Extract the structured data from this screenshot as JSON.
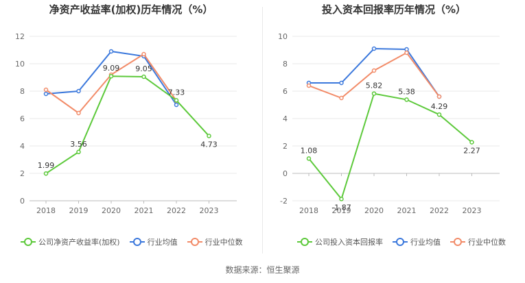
{
  "chart_data": [
    {
      "type": "line",
      "title": "净资产收益率(加权)历年情况（%）",
      "categories": [
        "2018",
        "2019",
        "2020",
        "2021",
        "2022",
        "2023"
      ],
      "ylim": [
        0,
        12
      ],
      "yticks": [
        0,
        2,
        4,
        6,
        8,
        10,
        12
      ],
      "grid": true,
      "legend_position": "bottom",
      "series": [
        {
          "name": "公司净资产收益率(加权)",
          "color": "#5cc93a",
          "values": [
            1.99,
            3.56,
            9.09,
            9.05,
            7.33,
            4.73
          ],
          "show_labels": true
        },
        {
          "name": "行业均值",
          "color": "#3b78dc",
          "values": [
            7.8,
            8.0,
            10.9,
            10.55,
            7.0,
            null
          ],
          "show_labels": false
        },
        {
          "name": "行业中位数",
          "color": "#f28b68",
          "values": [
            8.1,
            6.4,
            9.2,
            10.7,
            7.3,
            null
          ],
          "show_labels": false
        }
      ]
    },
    {
      "type": "line",
      "title": "投入资本回报率历年情况（%）",
      "categories": [
        "2018",
        "2019",
        "2020",
        "2021",
        "2022",
        "2023"
      ],
      "ylim": [
        -2,
        10
      ],
      "yticks": [
        -2,
        0,
        2,
        4,
        6,
        8,
        10
      ],
      "grid": true,
      "legend_position": "bottom",
      "series": [
        {
          "name": "公司投入资本回报率",
          "color": "#5cc93a",
          "values": [
            1.08,
            -1.87,
            5.82,
            5.38,
            4.29,
            2.27
          ],
          "show_labels": true
        },
        {
          "name": "行业均值",
          "color": "#3b78dc",
          "values": [
            6.6,
            6.6,
            9.1,
            9.05,
            5.6,
            null
          ],
          "show_labels": false
        },
        {
          "name": "行业中位数",
          "color": "#f28b68",
          "values": [
            6.4,
            5.5,
            7.5,
            8.8,
            5.6,
            null
          ],
          "show_labels": false
        }
      ]
    }
  ],
  "source": "数据来源：恒生聚源"
}
